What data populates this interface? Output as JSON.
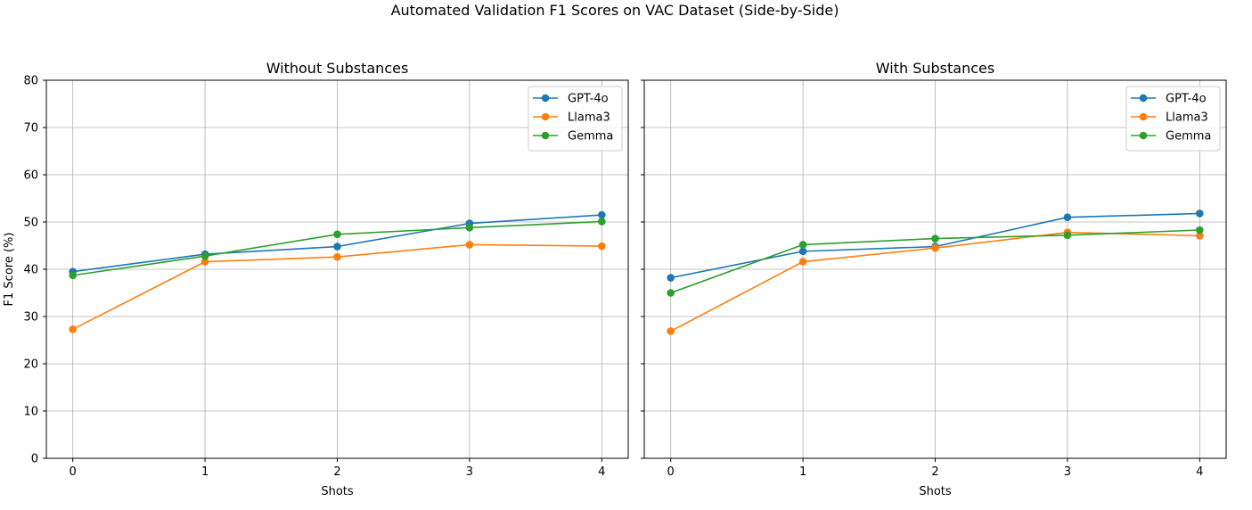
{
  "figure": {
    "suptitle": "Automated Validation F1 Scores on VAC Dataset (Side-by-Side)"
  },
  "colors": {
    "GPT-4o": "#1f77b4",
    "Llama3": "#ff7f0e",
    "Gemma": "#2ca02c",
    "grid": "#b0b0b0"
  },
  "chart_data": [
    {
      "type": "line",
      "title": "Without Substances",
      "xlabel": "Shots",
      "ylabel": "F1 Score (%)",
      "x": [
        0,
        1,
        2,
        3,
        4
      ],
      "xticks": [
        "0",
        "1",
        "2",
        "3",
        "4"
      ],
      "yticks": [
        "0",
        "10",
        "20",
        "30",
        "40",
        "50",
        "60",
        "70",
        "80"
      ],
      "ylim": [
        0,
        80
      ],
      "xlim": [
        -0.2,
        4.2
      ],
      "grid": true,
      "legend": "top-right",
      "series": [
        {
          "name": "GPT-4o",
          "values": [
            39.5,
            43.2,
            44.8,
            49.7,
            51.5
          ]
        },
        {
          "name": "Llama3",
          "values": [
            27.3,
            41.6,
            42.6,
            45.2,
            44.9
          ]
        },
        {
          "name": "Gemma",
          "values": [
            38.7,
            42.8,
            47.4,
            48.8,
            50.1
          ]
        }
      ]
    },
    {
      "type": "line",
      "title": "With Substances",
      "xlabel": "Shots",
      "ylabel": "",
      "x": [
        0,
        1,
        2,
        3,
        4
      ],
      "xticks": [
        "0",
        "1",
        "2",
        "3",
        "4"
      ],
      "yticks": [],
      "ylim": [
        0,
        80
      ],
      "xlim": [
        -0.2,
        4.2
      ],
      "grid": true,
      "legend": "top-right",
      "series": [
        {
          "name": "GPT-4o",
          "values": [
            38.2,
            43.8,
            44.8,
            51.0,
            51.8
          ]
        },
        {
          "name": "Llama3",
          "values": [
            26.9,
            41.6,
            44.5,
            47.8,
            47.1
          ]
        },
        {
          "name": "Gemma",
          "values": [
            35.0,
            45.2,
            46.5,
            47.2,
            48.3
          ]
        }
      ]
    }
  ]
}
